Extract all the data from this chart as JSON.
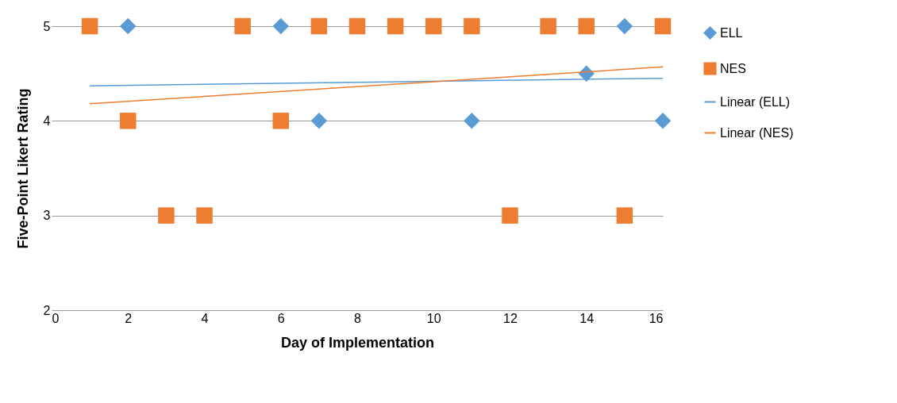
{
  "chart_data": {
    "type": "scatter",
    "xlabel": "Day of Implementation",
    "ylabel": "Five-Point Likert Rating",
    "xlim": [
      0,
      16
    ],
    "ylim": [
      2,
      5
    ],
    "xticks": [
      0,
      2,
      4,
      6,
      8,
      10,
      12,
      14,
      16
    ],
    "yticks": [
      2,
      3,
      4,
      5
    ],
    "grid": "y",
    "legend": "right",
    "series": [
      {
        "name": "ELL",
        "marker": "diamond",
        "color": "#5b9bd5",
        "x": [
          2,
          6,
          7,
          11,
          14,
          15,
          16
        ],
        "values": [
          5,
          5,
          4,
          4,
          4.5,
          5,
          4
        ]
      },
      {
        "name": "NES",
        "marker": "square",
        "color": "#ed7d31",
        "x": [
          1,
          2,
          3,
          4,
          5,
          6,
          7,
          8,
          9,
          10,
          11,
          12,
          13,
          14,
          15,
          16
        ],
        "values": [
          5,
          4,
          3,
          3,
          5,
          4,
          5,
          5,
          5,
          5,
          5,
          3,
          5,
          5,
          3,
          5
        ]
      },
      {
        "name": "Linear (ELL)",
        "type": "line",
        "marker": "none",
        "color": "#5b9bd5",
        "x": [
          1,
          16
        ],
        "values": [
          4.37,
          4.45
        ]
      },
      {
        "name": "Linear (NES)",
        "type": "line",
        "marker": "none",
        "color": "#ed7d31",
        "x": [
          1,
          16
        ],
        "values": [
          4.18,
          4.57
        ]
      }
    ]
  }
}
